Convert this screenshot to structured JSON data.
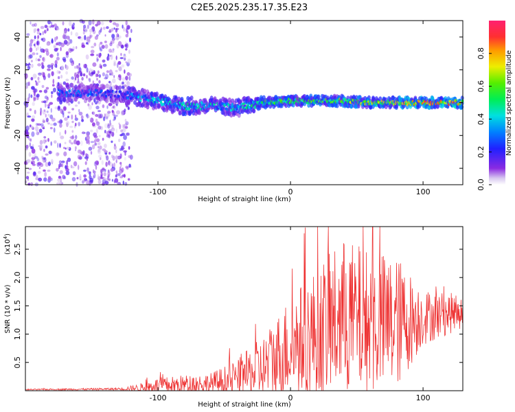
{
  "title": "C2E5.2025.235.17.35.E23",
  "chart_data": [
    {
      "type": "heatmap",
      "xlabel": "Height of straight line (km)",
      "ylabel": "Frequency (Hz)",
      "xlim": [
        -200,
        130
      ],
      "ylim": [
        -50,
        50
      ],
      "xticks": [
        -100,
        0,
        100
      ],
      "yticks": [
        -40,
        -20,
        0,
        20,
        40
      ],
      "colorbar": {
        "label": "Normalized spectral amplitude",
        "ticks": [
          0.0,
          0.2,
          0.4,
          0.6,
          0.8
        ],
        "range": [
          0,
          1
        ]
      },
      "ridge": [
        {
          "x": -175,
          "f": 6,
          "amp": 0.35
        },
        {
          "x": -155,
          "f": 6,
          "amp": 0.3
        },
        {
          "x": -130,
          "f": 5,
          "amp": 0.25
        },
        {
          "x": -120,
          "f": 4,
          "amp": 0.35
        },
        {
          "x": -100,
          "f": 1,
          "amp": 0.45
        },
        {
          "x": -80,
          "f": -2,
          "amp": 0.5
        },
        {
          "x": -60,
          "f": -2,
          "amp": 0.45
        },
        {
          "x": -40,
          "f": -3,
          "amp": 0.45
        },
        {
          "x": -20,
          "f": 0,
          "amp": 0.55
        },
        {
          "x": 0,
          "f": 1,
          "amp": 0.6
        },
        {
          "x": 20,
          "f": 1,
          "amp": 0.6
        },
        {
          "x": 40,
          "f": 1,
          "amp": 0.65
        },
        {
          "x": 60,
          "f": 0,
          "amp": 0.7
        },
        {
          "x": 80,
          "f": 0,
          "amp": 0.75
        },
        {
          "x": 100,
          "f": 0,
          "amp": 0.85
        },
        {
          "x": 125,
          "f": 0,
          "amp": 0.9
        }
      ],
      "noise_region": {
        "x_start": -200,
        "x_end": -120,
        "amp": 0.15
      }
    },
    {
      "type": "line",
      "xlabel": "Height of straight line (km)",
      "ylabel": "SNR (10 * v/v)",
      "y_multiplier": "(x10",
      "y_multiplier_exp": "4",
      "y_multiplier_close": ")",
      "xlim": [
        -200,
        130
      ],
      "ylim": [
        0,
        2.9
      ],
      "xticks": [
        -100,
        0,
        100
      ],
      "yticks": [
        0.5,
        1.0,
        1.5,
        2.0,
        2.5
      ],
      "ytick_labels": [
        "0.5",
        "1.0",
        "1.5",
        "2.0",
        "2.5"
      ],
      "color": "#ee3333",
      "envelope": [
        {
          "x": -200,
          "base": 0.02,
          "amp": 0.01
        },
        {
          "x": -130,
          "base": 0.03,
          "amp": 0.02
        },
        {
          "x": -115,
          "base": 0.05,
          "amp": 0.06
        },
        {
          "x": -100,
          "base": 0.08,
          "amp": 0.15
        },
        {
          "x": -80,
          "base": 0.1,
          "amp": 0.18
        },
        {
          "x": -60,
          "base": 0.12,
          "amp": 0.2
        },
        {
          "x": -40,
          "base": 0.2,
          "amp": 0.35
        },
        {
          "x": -20,
          "base": 0.4,
          "amp": 0.6
        },
        {
          "x": 0,
          "base": 0.8,
          "amp": 0.9
        },
        {
          "x": 20,
          "base": 1.0,
          "amp": 1.2
        },
        {
          "x": 40,
          "base": 1.3,
          "amp": 1.4
        },
        {
          "x": 60,
          "base": 1.2,
          "amp": 1.3
        },
        {
          "x": 80,
          "base": 1.2,
          "amp": 1.2
        },
        {
          "x": 100,
          "base": 1.3,
          "amp": 0.5
        },
        {
          "x": 130,
          "base": 1.4,
          "amp": 0.3
        }
      ]
    }
  ]
}
